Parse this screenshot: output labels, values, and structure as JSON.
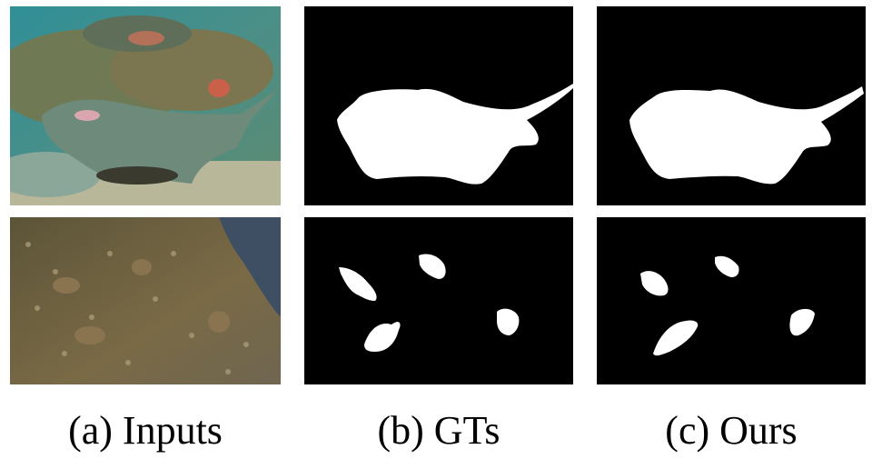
{
  "figure": {
    "columns": [
      {
        "label": "(a) Inputs"
      },
      {
        "label": "(b) GTs"
      },
      {
        "label": "(c) Ours"
      }
    ],
    "rows": [
      {
        "subject": "stingray"
      },
      {
        "subject": "birds"
      }
    ],
    "colors": {
      "mask_background": "#000000",
      "mask_foreground": "#ffffff",
      "page_background": "#ffffff"
    }
  }
}
